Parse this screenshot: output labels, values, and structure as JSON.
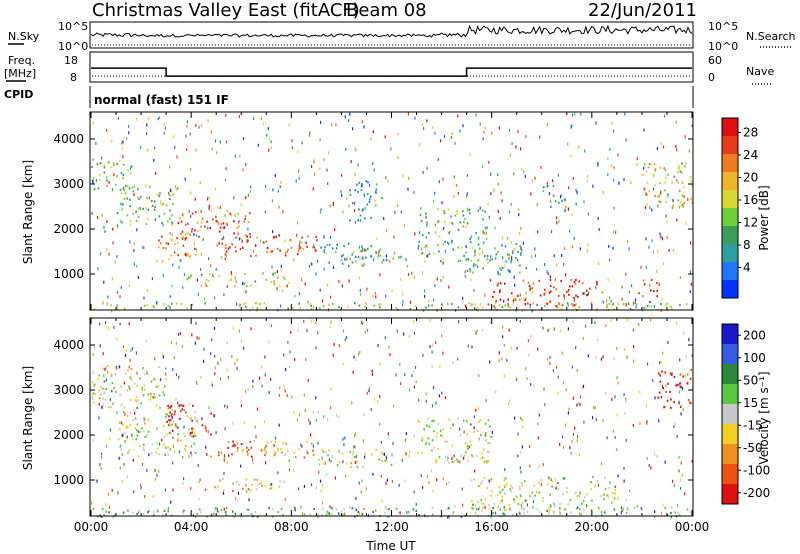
{
  "header": {
    "radar": "Christmas Valley East (fitACF)",
    "beam": "Beam 08",
    "date": "22/Jun/2011"
  },
  "noise_panel": {
    "left_label": "N.Sky",
    "right_label": "N.Search",
    "left_ticks": [
      "10^5",
      "10^0"
    ],
    "right_ticks": [
      "10^5",
      "10^0"
    ]
  },
  "freq_panel": {
    "left_label_1": "Freq.",
    "left_label_2": "[MHz]",
    "right_label": "Nave",
    "left_ticks": [
      "18",
      "8"
    ],
    "right_ticks": [
      "60",
      "0"
    ],
    "freq_steps": [
      {
        "start": 0.0,
        "end": 3.0,
        "mhz": 15.6
      },
      {
        "start": 3.0,
        "end": 15.0,
        "mhz": 10.9
      },
      {
        "start": 15.0,
        "end": 24.0,
        "mhz": 15.6
      }
    ],
    "nave_level": 17
  },
  "cpid": {
    "label": "CPID",
    "mode": "normal (fast) 151 IF"
  },
  "chart_data": [
    {
      "type": "heatmap",
      "panel": "power",
      "ylabel": "Slant Range [km]",
      "xlabel": "",
      "xlim": [
        0,
        24
      ],
      "ylim": [
        200,
        4600
      ],
      "yticks": [
        "1000",
        "2000",
        "3000",
        "4000"
      ],
      "colorbar": {
        "label": "Power [dB]",
        "ticks": [
          "4",
          "8",
          "12",
          "16",
          "20",
          "24",
          "28"
        ],
        "colors": [
          "#0033ff",
          "#1f77ff",
          "#2aa0a0",
          "#3a9e5a",
          "#6fcf3a",
          "#d8d832",
          "#f0b428",
          "#f07a20",
          "#e83a18",
          "#e01010"
        ]
      },
      "regions": [
        {
          "t0": 0.0,
          "t1": 1.6,
          "r0": 2800,
          "r1": 3600,
          "level": 0.45
        },
        {
          "t0": 1.0,
          "t1": 3.4,
          "r0": 2100,
          "r1": 3000,
          "level": 0.4
        },
        {
          "t0": 2.6,
          "t1": 4.4,
          "r0": 1300,
          "r1": 2000,
          "level": 0.75
        },
        {
          "t0": 3.4,
          "t1": 6.4,
          "r0": 1800,
          "r1": 2400,
          "level": 0.8
        },
        {
          "t0": 5.0,
          "t1": 9.2,
          "r0": 1400,
          "r1": 1900,
          "level": 0.85
        },
        {
          "t0": 3.8,
          "t1": 8.0,
          "r0": 750,
          "r1": 1050,
          "level": 0.55
        },
        {
          "t0": 9.0,
          "t1": 11.6,
          "r0": 1200,
          "r1": 1700,
          "level": 0.3
        },
        {
          "t0": 10.3,
          "t1": 11.6,
          "r0": 2200,
          "r1": 3100,
          "level": 0.25
        },
        {
          "t0": 11.3,
          "t1": 12.4,
          "r0": 1300,
          "r1": 1600,
          "level": 0.3
        },
        {
          "t0": 13.0,
          "t1": 15.8,
          "r0": 1300,
          "r1": 2500,
          "level": 0.4
        },
        {
          "t0": 15.0,
          "t1": 17.4,
          "r0": 1000,
          "r1": 1700,
          "level": 0.35
        },
        {
          "t0": 15.8,
          "t1": 20.4,
          "r0": 300,
          "r1": 900,
          "level": 0.9
        },
        {
          "t0": 18.0,
          "t1": 19.0,
          "r0": 2500,
          "r1": 3000,
          "level": 0.3
        },
        {
          "t0": 22.0,
          "t1": 24.0,
          "r0": 2500,
          "r1": 3500,
          "level": 0.55
        },
        {
          "t0": 21.8,
          "t1": 22.6,
          "r0": 400,
          "r1": 900,
          "level": 0.8
        },
        {
          "t0": 0.0,
          "t1": 24.0,
          "r0": 200,
          "r1": 380,
          "level": 0.5
        }
      ]
    },
    {
      "type": "heatmap",
      "panel": "velocity",
      "ylabel": "Slant Range [km]",
      "xlabel": "Time UT",
      "xlim": [
        0,
        24
      ],
      "ylim": [
        200,
        4600
      ],
      "yticks": [
        "1000",
        "2000",
        "3000",
        "4000"
      ],
      "xticks": [
        "00:00",
        "04:00",
        "08:00",
        "12:00",
        "16:00",
        "20:00",
        "00:00"
      ],
      "colorbar": {
        "label": "Velocity [m s⁻¹]",
        "ticks": [
          "200",
          "100",
          "50",
          "15",
          "-15",
          "-50",
          "-100",
          "-200"
        ],
        "colors": [
          "#1a1acc",
          "#3a5ae0",
          "#2a8a3a",
          "#58c840",
          "#c8c8c8",
          "#f0d020",
          "#f09020",
          "#f05010",
          "#e01010"
        ]
      },
      "regions": [
        {
          "t0": 0.0,
          "t1": 3.0,
          "r0": 2600,
          "r1": 3600,
          "level": 0.5
        },
        {
          "t0": 1.0,
          "t1": 4.2,
          "r0": 1500,
          "r1": 2600,
          "level": 0.5
        },
        {
          "t0": 3.0,
          "t1": 4.8,
          "r0": 2000,
          "r1": 2700,
          "level": 0.05
        },
        {
          "t0": 4.6,
          "t1": 6.4,
          "r0": 1500,
          "r1": 1900,
          "level": 0.12
        },
        {
          "t0": 6.0,
          "t1": 9.0,
          "r0": 1500,
          "r1": 1900,
          "level": 0.3
        },
        {
          "t0": 4.2,
          "t1": 7.8,
          "r0": 750,
          "r1": 1050,
          "level": 0.35
        },
        {
          "t0": 9.0,
          "t1": 12.0,
          "r0": 1300,
          "r1": 1700,
          "level": 0.5
        },
        {
          "t0": 13.0,
          "t1": 16.0,
          "r0": 1400,
          "r1": 2400,
          "level": 0.5
        },
        {
          "t0": 15.0,
          "t1": 21.0,
          "r0": 300,
          "r1": 1100,
          "level": 0.5
        },
        {
          "t0": 22.6,
          "t1": 24.0,
          "r0": 2600,
          "r1": 3500,
          "level": 0.03
        },
        {
          "t0": 0.0,
          "t1": 24.0,
          "r0": 200,
          "r1": 420,
          "level": 0.62
        }
      ]
    }
  ]
}
